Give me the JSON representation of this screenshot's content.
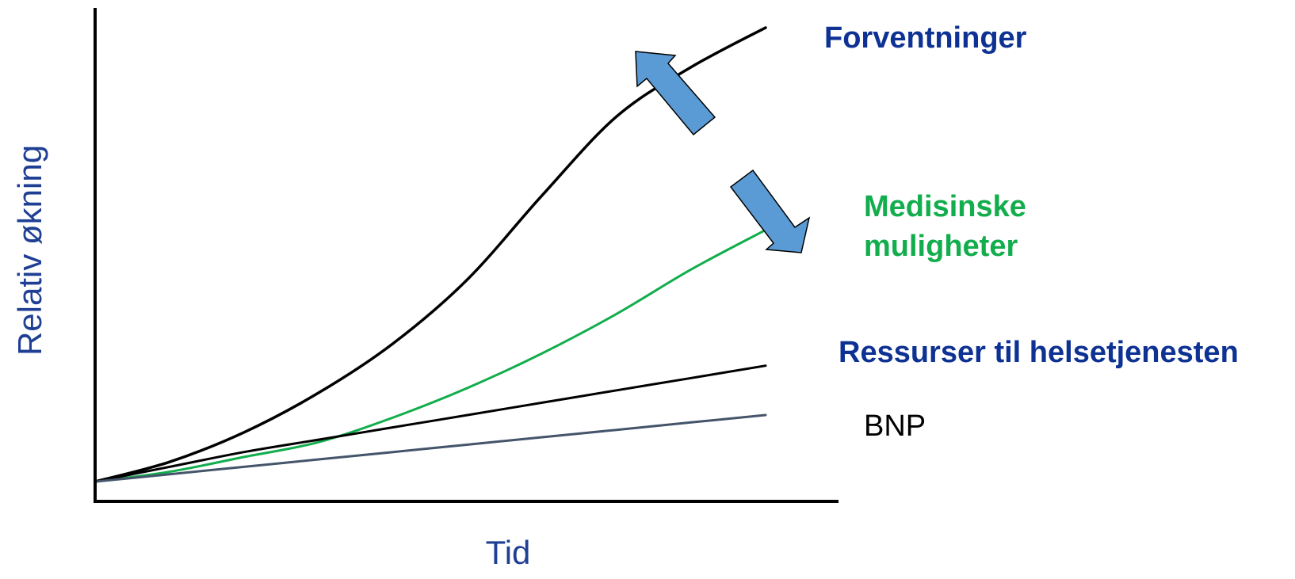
{
  "chart_data": {
    "type": "line",
    "xlabel": "Tid",
    "ylabel": "Relativ økning",
    "x": [
      0,
      10,
      20,
      30,
      40,
      50,
      60,
      70,
      80,
      90
    ],
    "xlim": [
      0,
      100
    ],
    "ylim": [
      0,
      100
    ],
    "grid": false,
    "legend": "labels at right end of each line",
    "series": [
      {
        "name": "Forventninger",
        "color": "#000000",
        "label_color": "#0d3293",
        "label_bold": true,
        "values": [
          4,
          8,
          14,
          22,
          32,
          45,
          62,
          78,
          88,
          96
        ]
      },
      {
        "name": "Medisinske muligheter",
        "label_lines": [
          "Medisinske",
          "muligheter"
        ],
        "color": "#12ad4c",
        "label_color": "#12ad4c",
        "label_bold": true,
        "values": [
          4,
          6,
          9,
          12,
          17,
          23,
          30,
          38,
          47,
          55
        ]
      },
      {
        "name": "Ressurser til helsetjenesten",
        "color": "#000000",
        "label_color": "#0d3293",
        "label_bold": true,
        "values": [
          4,
          7,
          10,
          12.5,
          15,
          17.5,
          20,
          22.5,
          25,
          27.5
        ]
      },
      {
        "name": "BNP",
        "color": "#44546a",
        "label_color": "#000000",
        "label_bold": false,
        "values": [
          4,
          5.5,
          7,
          8.5,
          10,
          11.5,
          13,
          14.5,
          16,
          17.5
        ]
      }
    ],
    "annotations": [
      {
        "type": "arrow",
        "direction": "up-left",
        "color": "#5b9bd5",
        "near": "Forventninger"
      },
      {
        "type": "arrow",
        "direction": "down-right",
        "color": "#5b9bd5",
        "near": "Medisinske muligheter"
      }
    ]
  }
}
